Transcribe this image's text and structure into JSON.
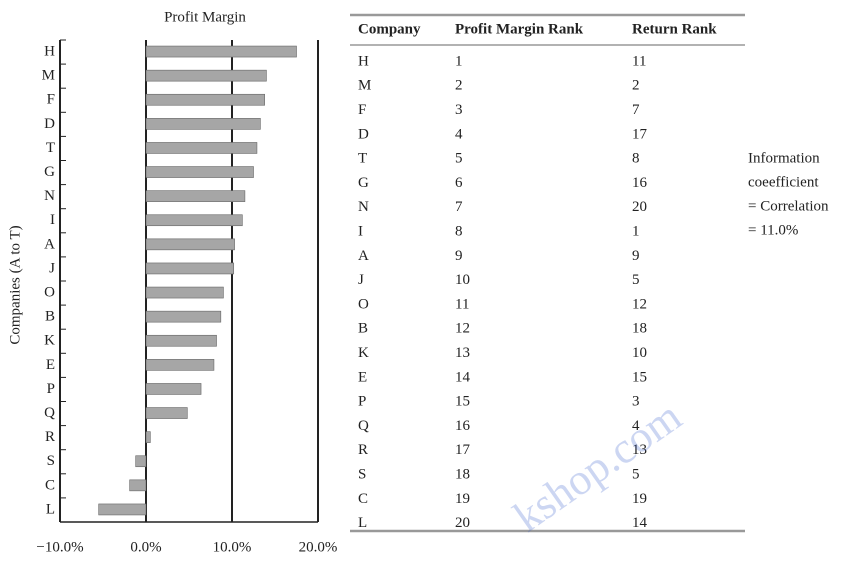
{
  "chart_data": {
    "type": "hbar",
    "title": "Profit Margin",
    "y_label": "Companies (A to T)",
    "categories": [
      "H",
      "M",
      "F",
      "D",
      "T",
      "G",
      "N",
      "I",
      "A",
      "J",
      "O",
      "B",
      "K",
      "E",
      "P",
      "Q",
      "R",
      "S",
      "C",
      "L"
    ],
    "values": [
      17.5,
      14,
      13.8,
      13.3,
      12.9,
      12.5,
      11.5,
      11.2,
      10.3,
      10.2,
      9,
      8.7,
      8.2,
      7.9,
      6.4,
      4.8,
      0.5,
      -1.2,
      -1.9,
      -5.5
    ],
    "color": "#a6a6a6",
    "xlim": [
      -10,
      20
    ],
    "xticks": [
      {
        "value": -10,
        "label": "−10.0%"
      },
      {
        "value": 0,
        "label": "0.0%"
      },
      {
        "value": 10,
        "label": "10.0%"
      },
      {
        "value": 20,
        "label": "20.0%"
      }
    ],
    "grid": true
  },
  "table": {
    "header": [
      "Company",
      "Profit Margin Rank",
      "Return Rank"
    ],
    "rows": [
      [
        "H",
        "1",
        "11"
      ],
      [
        "M",
        "2",
        "2"
      ],
      [
        "F",
        "3",
        "7"
      ],
      [
        "D",
        "4",
        "17"
      ],
      [
        "T",
        "5",
        "8"
      ],
      [
        "G",
        "6",
        "16"
      ],
      [
        "N",
        "7",
        "20"
      ],
      [
        "I",
        "8",
        "1"
      ],
      [
        "A",
        "9",
        "9"
      ],
      [
        "J",
        "10",
        "5"
      ],
      [
        "O",
        "11",
        "12"
      ],
      [
        "B",
        "12",
        "18"
      ],
      [
        "K",
        "13",
        "10"
      ],
      [
        "E",
        "14",
        "15"
      ],
      [
        "P",
        "15",
        "3"
      ],
      [
        "Q",
        "16",
        "4"
      ],
      [
        "R",
        "17",
        "13"
      ],
      [
        "S",
        "18",
        "5"
      ],
      [
        "C",
        "19",
        "19"
      ],
      [
        "L",
        "20",
        "14"
      ]
    ]
  },
  "annotation": [
    "Information",
    "coeefficient",
    "= Correlation",
    "= 11.0%"
  ],
  "watermark": "kshop.com"
}
